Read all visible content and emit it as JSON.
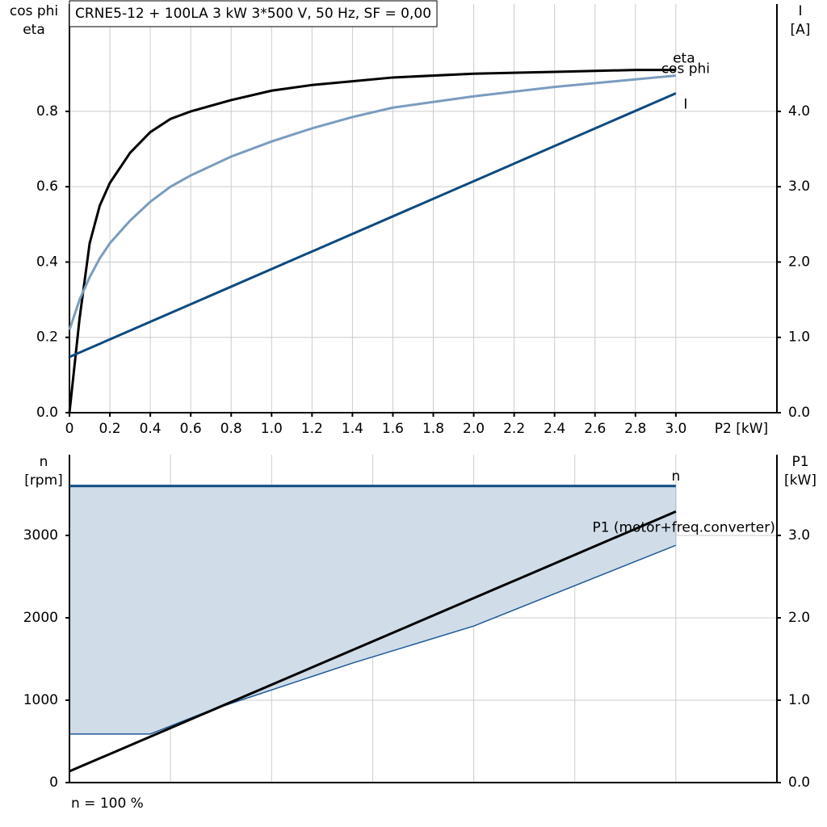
{
  "chart_data": [
    {
      "type": "line",
      "title": "CRNE5-12 + 100LA   3 kW   3*500 V, 50 Hz, SF = 0,00",
      "ylabel": [
        "cos phi",
        "eta"
      ],
      "y2label": [
        "I",
        "[A]"
      ],
      "xlabel": "P2 [kW]",
      "xlim": [
        0,
        3.5
      ],
      "ylim": [
        0,
        1.085
      ],
      "y2lim": [
        0,
        5.425
      ],
      "grid": true,
      "xticks": [
        {
          "value": 0,
          "label": "0"
        },
        0.2,
        0.4,
        0.6,
        0.8,
        {
          "value": 1,
          "label": "1.0"
        },
        1.2,
        1.4,
        1.6,
        1.8,
        {
          "value": 2,
          "label": "2.0"
        },
        2.2,
        2.4,
        2.6,
        2.8,
        {
          "value": 3,
          "label": "3.0"
        }
      ],
      "yticks": [
        {
          "value": 0,
          "label": "0.0"
        },
        0.2,
        0.4,
        0.6,
        0.8
      ],
      "y2ticks": [
        {
          "value": 0,
          "label": "0.0"
        },
        {
          "value": 1,
          "label": "1.0"
        },
        {
          "value": 2,
          "label": "2.0"
        },
        {
          "value": 3,
          "label": "3.0"
        },
        {
          "value": 4,
          "label": "4.0"
        }
      ],
      "series": [
        {
          "name": "eta",
          "color": "#000000",
          "axis": "y",
          "x": [
            0,
            0.05,
            0.1,
            0.15,
            0.2,
            0.3,
            0.4,
            0.5,
            0.6,
            0.8,
            1.0,
            1.2,
            1.4,
            1.6,
            2.0,
            2.4,
            2.8,
            3.0
          ],
          "values": [
            0,
            0.25,
            0.45,
            0.55,
            0.61,
            0.69,
            0.745,
            0.78,
            0.8,
            0.83,
            0.855,
            0.87,
            0.88,
            0.89,
            0.9,
            0.905,
            0.91,
            0.91
          ]
        },
        {
          "name": "cos phi",
          "color": "#7a9cbf",
          "axis": "y",
          "x": [
            0,
            0.05,
            0.1,
            0.15,
            0.2,
            0.3,
            0.4,
            0.5,
            0.6,
            0.8,
            1.0,
            1.2,
            1.4,
            1.6,
            2.0,
            2.4,
            2.8,
            3.0
          ],
          "values": [
            0.22,
            0.3,
            0.36,
            0.41,
            0.45,
            0.51,
            0.56,
            0.6,
            0.63,
            0.68,
            0.72,
            0.755,
            0.785,
            0.81,
            0.84,
            0.865,
            0.885,
            0.895
          ]
        },
        {
          "name": "I",
          "color": "#0d4a80",
          "axis": "y2",
          "x": [
            0,
            3.0
          ],
          "values": [
            0.74,
            4.24
          ]
        }
      ]
    },
    {
      "type": "line",
      "ylabel": [
        "n",
        "[rpm]"
      ],
      "y2label": [
        "P1",
        "[kW]"
      ],
      "note": "n = 100 %",
      "xlim": [
        0,
        3.5
      ],
      "ylim": [
        0,
        3980
      ],
      "y2lim": [
        0,
        3.98
      ],
      "grid": true,
      "xgrid": [
        0.5,
        1.0,
        1.5,
        2.0,
        2.5,
        3.0
      ],
      "yticks": [
        0,
        1000,
        2000,
        3000
      ],
      "y2ticks": [
        {
          "value": 0,
          "label": "0.0"
        },
        {
          "value": 1,
          "label": "1.0"
        },
        {
          "value": 2,
          "label": "2.0"
        },
        {
          "value": 3,
          "label": "3.0"
        }
      ],
      "band": {
        "color": "#d0dce8",
        "line_color": "#1e5a96",
        "x": [
          0,
          0.4,
          0.7,
          1.4,
          2.0,
          3.0
        ],
        "lower": [
          590,
          590,
          880,
          1450,
          1900,
          2880
        ]
      },
      "series": [
        {
          "name": "n",
          "color": "#0d4a80",
          "axis": "y",
          "x": [
            0,
            3.0
          ],
          "values": [
            3600,
            3600
          ]
        },
        {
          "name": "P1 (motor+freq.converter)",
          "color": "#000000",
          "axis": "y2",
          "x": [
            0,
            3.0
          ],
          "values": [
            0.137,
            3.29
          ]
        }
      ]
    }
  ]
}
